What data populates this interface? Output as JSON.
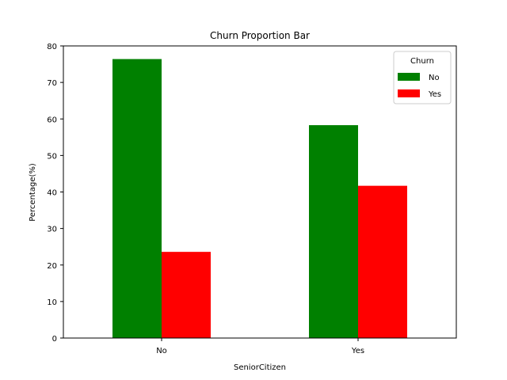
{
  "chart_data": {
    "type": "bar",
    "title": "Churn Proportion Bar",
    "xlabel": "SeniorCitizen",
    "ylabel": "Percentage(%)",
    "categories": [
      "No",
      "Yes"
    ],
    "series": [
      {
        "name": "No",
        "values": [
          76.4,
          58.3
        ],
        "color": "#008000"
      },
      {
        "name": "Yes",
        "values": [
          23.6,
          41.7
        ],
        "color": "#ff0000"
      }
    ],
    "ylim": [
      0,
      80
    ],
    "yticks": [
      0,
      10,
      20,
      30,
      40,
      50,
      60,
      70,
      80
    ],
    "grid": false,
    "legend": {
      "title": "Churn",
      "position": "top-right"
    }
  }
}
